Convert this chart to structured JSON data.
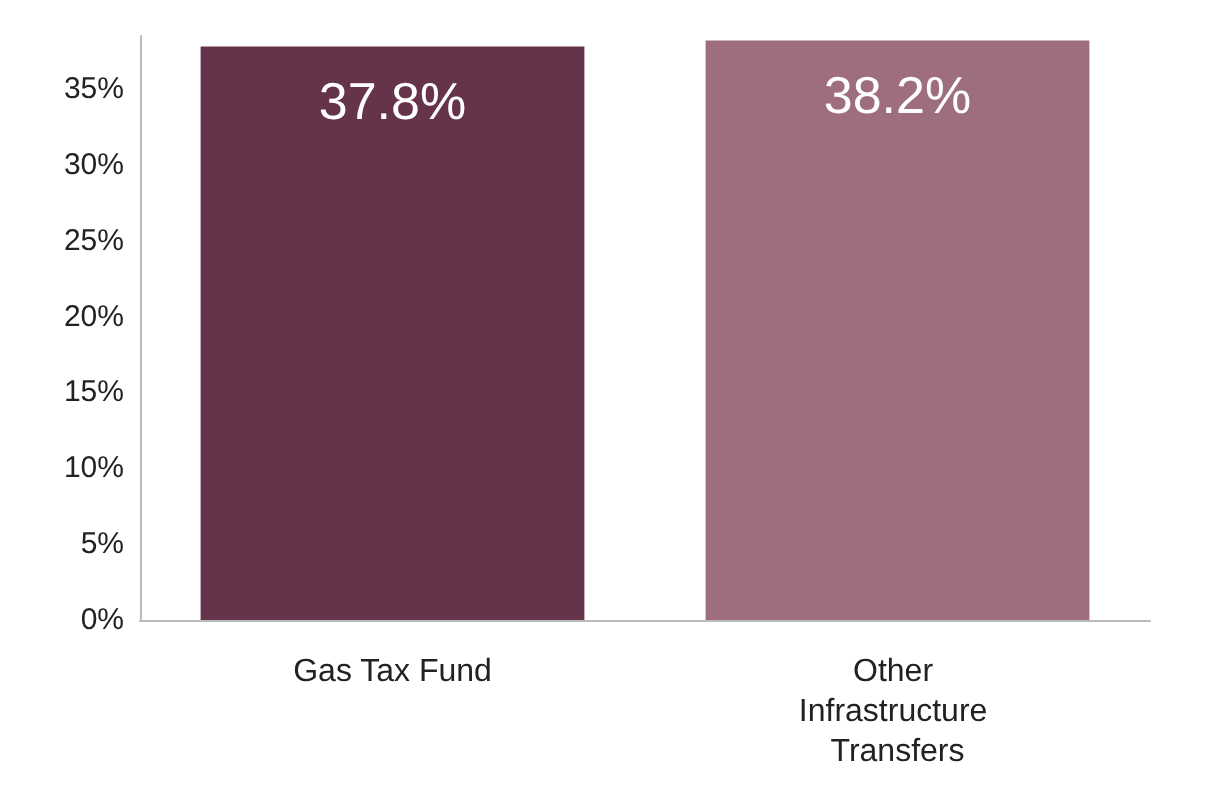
{
  "chart_data": {
    "type": "bar",
    "categories": [
      "Gas Tax Fund",
      "Other Infrastructure Transfers"
    ],
    "values": [
      37.8,
      38.2
    ],
    "colors": [
      "#66344a",
      "#9e6e80"
    ],
    "value_labels": [
      "37.8%",
      "38.2%"
    ],
    "ylim": [
      0,
      38.5
    ],
    "yticks": [
      {
        "value": 0,
        "label": "0%"
      },
      {
        "value": 5,
        "label": "5%"
      },
      {
        "value": 10,
        "label": "10%"
      },
      {
        "value": 15,
        "label": "15%"
      },
      {
        "value": 20,
        "label": "20%"
      },
      {
        "value": 25,
        "label": "25%"
      },
      {
        "value": 30,
        "label": "30%"
      },
      {
        "value": 35,
        "label": "35%"
      }
    ],
    "grid": false
  }
}
